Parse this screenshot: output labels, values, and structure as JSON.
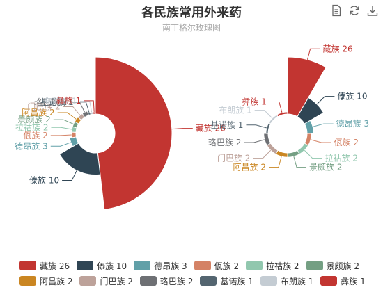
{
  "title": "各民族常用外来药",
  "subtitle": "南丁格尔玫瑰图",
  "toolbox": {
    "icons": [
      "data-view-icon",
      "refresh-icon",
      "download-icon"
    ]
  },
  "chart_data": {
    "type": "pie",
    "subtype": "nightingale-rose",
    "title": "各民族常用外来药",
    "subtitle": "南丁格尔玫瑰图",
    "charts": [
      {
        "rose_type": "radius"
      },
      {
        "rose_type": "area"
      }
    ],
    "series": [
      {
        "name": "藏族",
        "value": 26,
        "color": "#c23531"
      },
      {
        "name": "傣族",
        "value": 10,
        "color": "#2f4554"
      },
      {
        "name": "德昂族",
        "value": 3,
        "color": "#61a0a8"
      },
      {
        "name": "佤族",
        "value": 2,
        "color": "#d48265"
      },
      {
        "name": "拉祜族",
        "value": 2,
        "color": "#91c7ae"
      },
      {
        "name": "景颇族",
        "value": 2,
        "color": "#749f83"
      },
      {
        "name": "阿昌族",
        "value": 2,
        "color": "#ca8622"
      },
      {
        "name": "门巴族",
        "value": 2,
        "color": "#bda29a"
      },
      {
        "name": "珞巴族",
        "value": 2,
        "color": "#6e7074"
      },
      {
        "name": "基诺族",
        "value": 1,
        "color": "#546570"
      },
      {
        "name": "布朗族",
        "value": 1,
        "color": "#c4ccd3"
      },
      {
        "name": "彝族",
        "value": 1,
        "color": "#c23531"
      }
    ],
    "legend_position": "bottom"
  }
}
